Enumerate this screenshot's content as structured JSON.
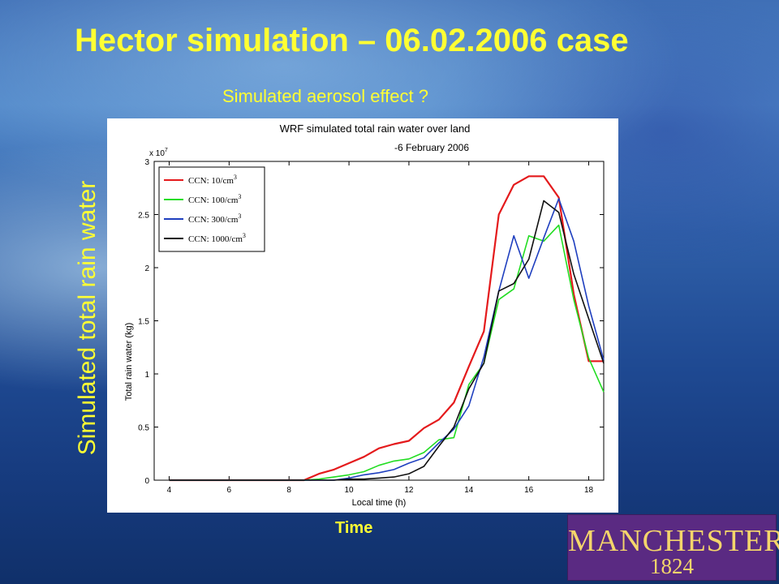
{
  "slide": {
    "title": "Hector simulation – 06.02.2006 case",
    "subtitle": "Simulated aerosol effect ?",
    "y_label": "Simulated total rain water",
    "x_label": "Time"
  },
  "logo": {
    "name": "MANCHESTER",
    "year": "1824"
  },
  "colors": {
    "text_yellow": "#ffff33",
    "logo_bg": "#5a2a82",
    "logo_text": "#f4d56b"
  },
  "chart_data": {
    "type": "line",
    "title": "WRF simulated total rain water over land",
    "subtitle": "-6 February 2006",
    "xlabel": "Local time (h)",
    "ylabel": "Total rain water (kg)",
    "y_multiplier": "x 10",
    "y_multiplier_exp": "7",
    "xlim": [
      3.5,
      18.5
    ],
    "ylim": [
      0,
      3
    ],
    "xticks": [
      4,
      6,
      8,
      10,
      12,
      14,
      16,
      18
    ],
    "yticks": [
      0,
      0.5,
      1,
      1.5,
      2,
      2.5,
      3
    ],
    "ytick_labels": [
      "0",
      "0.5",
      "1",
      "1.5",
      "2",
      "2.5",
      "3"
    ],
    "grid": false,
    "legend_position": "top-left",
    "x": [
      4,
      4.5,
      5,
      5.5,
      6,
      6.5,
      7,
      7.5,
      8,
      8.5,
      9,
      9.5,
      10,
      10.5,
      11,
      11.5,
      12,
      12.5,
      13,
      13.5,
      14,
      14.5,
      15,
      15.5,
      16,
      16.5,
      17,
      17.5,
      18,
      18.5
    ],
    "series": [
      {
        "name": "CCN: 10/cm",
        "sup": "3",
        "color": "#e41a1c",
        "values": [
          0,
          0,
          0,
          0,
          0,
          0,
          0,
          0,
          0,
          0,
          0.06,
          0.1,
          0.16,
          0.22,
          0.3,
          0.34,
          0.37,
          0.49,
          0.57,
          0.73,
          1.07,
          1.4,
          2.5,
          2.78,
          2.86,
          2.86,
          2.66,
          1.75,
          1.12,
          1.12
        ]
      },
      {
        "name": "CCN: 100/cm",
        "sup": "3",
        "color": "#22dd22",
        "values": [
          0,
          0,
          0,
          0,
          0,
          0,
          0,
          0,
          0,
          0,
          0.01,
          0.03,
          0.05,
          0.08,
          0.14,
          0.18,
          0.2,
          0.26,
          0.38,
          0.4,
          0.9,
          1.1,
          1.7,
          1.8,
          2.3,
          2.25,
          2.4,
          1.7,
          1.15,
          0.83
        ]
      },
      {
        "name": "CCN: 300/cm",
        "sup": "3",
        "color": "#1f3fbf",
        "values": [
          0,
          0,
          0,
          0,
          0,
          0,
          0,
          0,
          0,
          0,
          0,
          0,
          0.02,
          0.05,
          0.07,
          0.1,
          0.16,
          0.21,
          0.35,
          0.48,
          0.7,
          1.16,
          1.78,
          2.3,
          1.9,
          2.28,
          2.65,
          2.25,
          1.64,
          1.13
        ]
      },
      {
        "name": "CCN: 1000/cm",
        "sup": "3",
        "color": "#111111",
        "values": [
          0,
          0,
          0,
          0,
          0,
          0,
          0,
          0,
          0,
          0,
          0,
          0,
          0.01,
          0.01,
          0.02,
          0.03,
          0.06,
          0.13,
          0.32,
          0.5,
          0.86,
          1.1,
          1.78,
          1.85,
          2.08,
          2.63,
          2.52,
          1.94,
          1.52,
          1.1
        ]
      }
    ]
  }
}
